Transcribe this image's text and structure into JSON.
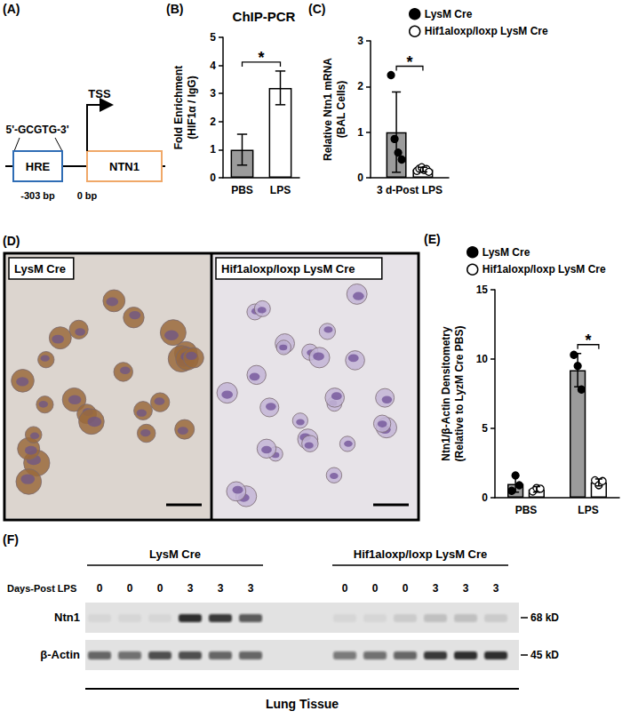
{
  "panel_a": {
    "label": "(A)",
    "motif": "5'-GCGTG-3'",
    "element": "HRE",
    "gene": "NTN1",
    "tss": "TSS",
    "positions": [
      "-303 bp",
      "0 bp"
    ]
  },
  "chart_data": [
    {
      "label": "(B)",
      "type": "bar",
      "title": "ChIP-PCR",
      "ylabel": "Fold Enrichment\n(HIF1α / IgG)",
      "categories": [
        "PBS",
        "LPS"
      ],
      "values": [
        1.0,
        3.2
      ],
      "errors": [
        0.55,
        0.6
      ],
      "colors": [
        "#9b9b9b",
        "#ffffff"
      ],
      "ylim": [
        0,
        5
      ],
      "yticks": [
        0,
        1,
        2,
        3,
        4,
        5
      ],
      "grid": false,
      "annotations": [
        {
          "text": "*",
          "between": [
            "PBS",
            "LPS"
          ]
        }
      ]
    },
    {
      "label": "(C)",
      "type": "bar",
      "ylabel": "Relative Ntn1 mRNA\n(BAL Cells)",
      "categories": [
        "3 d-Post LPS"
      ],
      "series": [
        {
          "name": "LysM Cre",
          "color": "#9b9b9b",
          "marker": "filled_circle",
          "values": [
            1.0
          ],
          "errors": [
            0.88
          ],
          "points": [
            [
              2.25,
              0.85,
              0.55,
              0.4
            ]
          ]
        },
        {
          "name": "Hif1aloxp/loxp LysM Cre",
          "color": "#ffffff",
          "marker": "open_circle",
          "values": [
            0.18
          ],
          "errors": [
            0.05
          ],
          "points": [
            [
              0.15,
              0.2,
              0.23,
              0.17,
              0.19,
              0.13
            ]
          ]
        }
      ],
      "ylim": [
        0,
        3
      ],
      "yticks": [
        0,
        1,
        2,
        3
      ],
      "grid": false,
      "legend": "top",
      "annotations": [
        {
          "text": "*",
          "category": "3 d-Post LPS",
          "between": [
            "LysM Cre",
            "Hif1aloxp/loxp LysM Cre"
          ]
        }
      ]
    },
    {
      "label": "(E)",
      "type": "bar",
      "ylabel": "Ntn1/β-Actin Densitometry\n(Relative to LyzM Cre PBS)",
      "categories": [
        "PBS",
        "LPS"
      ],
      "series": [
        {
          "name": "LysM Cre",
          "color": "#9b9b9b",
          "marker": "filled_circle",
          "values": [
            1.0,
            9.2
          ],
          "errors": [
            0.6,
            1.2
          ],
          "points": [
            [
              0.5,
              1.6,
              0.9
            ],
            [
              10.3,
              9.5,
              7.8
            ]
          ]
        },
        {
          "name": "Hif1aloxp/loxp LysM Cre",
          "color": "#ffffff",
          "marker": "open_circle",
          "values": [
            0.6,
            1.1
          ],
          "errors": [
            0.2,
            0.25
          ],
          "points": [
            [
              0.45,
              0.7,
              0.65
            ],
            [
              1.25,
              0.9,
              1.2
            ]
          ]
        }
      ],
      "ylim": [
        0,
        15
      ],
      "yticks": [
        0,
        5,
        10,
        15
      ],
      "grid": false,
      "legend": "top",
      "annotations": [
        {
          "text": "*",
          "category": "LPS",
          "between": [
            "LysM Cre",
            "Hif1aloxp/loxp LysM Cre"
          ]
        }
      ]
    }
  ],
  "panel_d": {
    "label": "(D)",
    "images": [
      "LysM Cre",
      "Hif1aloxp/loxp LysM Cre"
    ]
  },
  "panel_f": {
    "label": "(F)",
    "row_title": "Days-Post LPS",
    "groups": [
      {
        "name": "LysM Cre",
        "days": [
          0,
          0,
          0,
          3,
          3,
          3
        ]
      },
      {
        "name": "Hif1aloxp/loxp LysM Cre",
        "days": [
          0,
          0,
          0,
          3,
          3,
          3
        ]
      }
    ],
    "bands": [
      {
        "name": "Ntn1",
        "size": "68 kD",
        "intensities": [
          0.05,
          0.05,
          0.05,
          0.85,
          0.8,
          0.65,
          0.05,
          0.05,
          0.1,
          0.15,
          0.15,
          0.1
        ]
      },
      {
        "name": "β-Actin",
        "size": "45 kD",
        "intensities": [
          0.6,
          0.55,
          0.7,
          0.7,
          0.6,
          0.6,
          0.5,
          0.55,
          0.6,
          0.8,
          0.85,
          0.85
        ]
      }
    ],
    "tissue": "Lung Tissue"
  }
}
